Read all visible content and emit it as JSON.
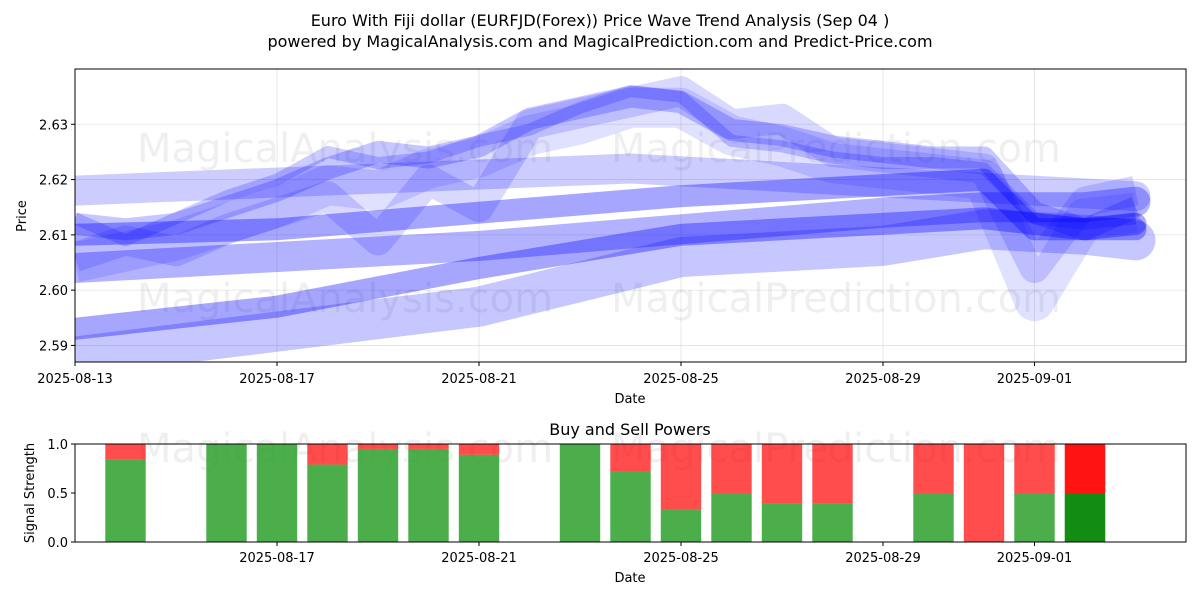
{
  "header": {
    "title_line1": "Euro With Fiji dollar (EURFJD(Forex)) Price Wave Trend Analysis (Sep 04 )",
    "title_line2": "powered by MagicalAnalysis.com and MagicalPrediction.com and Predict-Price.com"
  },
  "watermarks": [
    "MagicalAnalysis.com",
    "MagicalPrediction.com"
  ],
  "colors": {
    "wave": "#0000ff",
    "buy": "#2ca02c",
    "sell": "#ff0000",
    "buy_strong": "#008000",
    "sell_strong": "#ff0000"
  },
  "chart_data": [
    {
      "type": "line",
      "title": "",
      "xlabel": "Date",
      "ylabel": "Price",
      "xlim": [
        "2025-08-13",
        "2025-09-04"
      ],
      "ylim": [
        2.587,
        2.64
      ],
      "x_ticks": [
        "2025-08-13",
        "2025-08-17",
        "2025-08-21",
        "2025-08-25",
        "2025-08-29",
        "2025-09-01"
      ],
      "y_ticks": [
        2.59,
        2.6,
        2.61,
        2.62,
        2.63
      ],
      "grid": true,
      "series": [
        {
          "x": [
            "2025-08-13",
            "2025-08-14",
            "2025-08-15",
            "2025-08-16",
            "2025-08-17",
            "2025-08-18",
            "2025-08-19",
            "2025-08-20",
            "2025-08-21",
            "2025-08-22",
            "2025-08-23",
            "2025-08-24",
            "2025-08-25",
            "2025-08-26",
            "2025-08-27",
            "2025-08-28",
            "2025-08-29",
            "2025-08-30",
            "2025-08-31",
            "2025-09-01",
            "2025-09-02",
            "2025-09-03"
          ],
          "y": [
            2.613,
            2.609,
            2.613,
            2.617,
            2.62,
            2.625,
            2.623,
            2.624,
            2.627,
            2.629,
            2.633,
            2.636,
            2.635,
            2.627,
            2.626,
            2.624,
            2.623,
            2.623,
            2.622,
            2.613,
            2.612,
            2.613
          ]
        },
        {
          "x": [
            "2025-08-13",
            "2025-08-14",
            "2025-08-15",
            "2025-08-16",
            "2025-08-17",
            "2025-08-18",
            "2025-08-19",
            "2025-08-20",
            "2025-08-21",
            "2025-08-22",
            "2025-08-23",
            "2025-08-24",
            "2025-08-25",
            "2025-08-26",
            "2025-08-27",
            "2025-08-28",
            "2025-08-29",
            "2025-08-30",
            "2025-08-31",
            "2025-09-01",
            "2025-09-02",
            "2025-09-03"
          ],
          "y": [
            2.612,
            2.611,
            2.612,
            2.615,
            2.618,
            2.622,
            2.625,
            2.624,
            2.626,
            2.631,
            2.633,
            2.635,
            2.634,
            2.629,
            2.628,
            2.626,
            2.625,
            2.624,
            2.624,
            2.614,
            2.611,
            2.615
          ]
        },
        {
          "x": [
            "2025-08-13",
            "2025-08-14",
            "2025-08-15",
            "2025-08-16",
            "2025-08-17",
            "2025-08-18",
            "2025-08-19",
            "2025-08-20",
            "2025-08-21",
            "2025-08-22",
            "2025-08-23",
            "2025-08-24",
            "2025-08-25",
            "2025-08-26",
            "2025-08-27",
            "2025-08-28",
            "2025-08-29",
            "2025-08-30",
            "2025-08-31",
            "2025-09-01",
            "2025-09-02",
            "2025-09-03"
          ],
          "y": [
            2.606,
            2.609,
            2.607,
            2.611,
            2.614,
            2.617,
            2.609,
            2.62,
            2.615,
            2.63,
            2.632,
            2.634,
            2.636,
            2.63,
            2.631,
            2.625,
            2.624,
            2.623,
            2.622,
            2.604,
            2.616,
            2.618
          ]
        },
        {
          "x": [
            "2025-08-13",
            "2025-08-14",
            "2025-08-15",
            "2025-08-16",
            "2025-08-17",
            "2025-08-18",
            "2025-08-19",
            "2025-08-20",
            "2025-08-21",
            "2025-08-22",
            "2025-08-23",
            "2025-08-24",
            "2025-08-25",
            "2025-08-26",
            "2025-08-27",
            "2025-08-28",
            "2025-08-29",
            "2025-08-30",
            "2025-08-31",
            "2025-09-01",
            "2025-09-02",
            "2025-09-03"
          ],
          "y": [
            2.605,
            2.607,
            2.609,
            2.612,
            2.615,
            2.619,
            2.618,
            2.622,
            2.624,
            2.628,
            2.63,
            2.633,
            2.633,
            2.628,
            2.626,
            2.623,
            2.622,
            2.621,
            2.62,
            2.598,
            2.613,
            2.614
          ]
        },
        {
          "x": [
            "2025-08-13",
            "2025-08-24",
            "2025-09-03"
          ],
          "y": [
            2.618,
            2.622,
            2.617
          ]
        },
        {
          "x": [
            "2025-08-13",
            "2025-08-17",
            "2025-08-21",
            "2025-08-25",
            "2025-08-29",
            "2025-08-31",
            "2025-09-01",
            "2025-09-02",
            "2025-09-03"
          ],
          "y": [
            2.61,
            2.611,
            2.614,
            2.617,
            2.619,
            2.62,
            2.611,
            2.611,
            2.612
          ]
        },
        {
          "x": [
            "2025-08-13",
            "2025-08-17",
            "2025-08-21",
            "2025-08-25",
            "2025-08-29",
            "2025-08-31",
            "2025-09-02",
            "2025-09-03"
          ],
          "y": [
            2.604,
            2.606,
            2.608,
            2.611,
            2.614,
            2.615,
            2.615,
            2.616
          ]
        },
        {
          "x": [
            "2025-08-13",
            "2025-08-17",
            "2025-08-21",
            "2025-08-25",
            "2025-08-29",
            "2025-08-31",
            "2025-09-02",
            "2025-09-03"
          ],
          "y": [
            2.593,
            2.597,
            2.604,
            2.61,
            2.612,
            2.613,
            2.611,
            2.611
          ]
        },
        {
          "x": [
            "2025-08-13",
            "2025-08-21",
            "2025-08-25",
            "2025-08-29",
            "2025-08-31",
            "2025-09-02",
            "2025-09-03"
          ],
          "y": [
            2.588,
            2.597,
            2.606,
            2.608,
            2.611,
            2.61,
            2.609
          ]
        }
      ]
    },
    {
      "type": "bar",
      "title": "Buy and Sell Powers",
      "xlabel": "Date",
      "ylabel": "Signal Strength",
      "xlim": [
        "2025-08-13",
        "2025-09-04"
      ],
      "ylim": [
        0,
        1.0
      ],
      "x_ticks": [
        "2025-08-17",
        "2025-08-21",
        "2025-08-25",
        "2025-08-29",
        "2025-09-01"
      ],
      "y_ticks": [
        "0.0",
        "0.5",
        "1.0"
      ],
      "categories": [
        "2025-08-14",
        "2025-08-16",
        "2025-08-17",
        "2025-08-18",
        "2025-08-19",
        "2025-08-20",
        "2025-08-21",
        "2025-08-23",
        "2025-08-24",
        "2025-08-25",
        "2025-08-26",
        "2025-08-27",
        "2025-08-28",
        "2025-08-30",
        "2025-08-31",
        "2025-09-01",
        "2025-09-02"
      ],
      "series": [
        {
          "name": "buy",
          "values": [
            0.84,
            1.0,
            1.0,
            0.79,
            0.95,
            0.95,
            0.89,
            1.0,
            0.72,
            0.33,
            0.5,
            0.39,
            0.39,
            0.5,
            0.0,
            0.5,
            0.5
          ]
        },
        {
          "name": "sell",
          "values": [
            0.16,
            0.0,
            0.0,
            0.21,
            0.05,
            0.05,
            0.11,
            0.0,
            0.28,
            0.67,
            0.5,
            0.61,
            0.61,
            0.5,
            1.0,
            0.5,
            0.5
          ]
        }
      ],
      "highlight_category": "2025-09-01"
    }
  ]
}
